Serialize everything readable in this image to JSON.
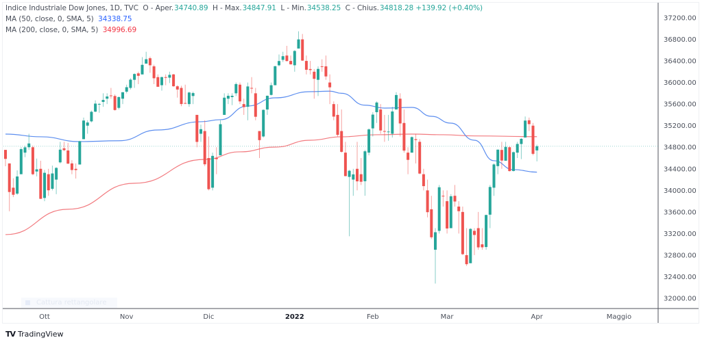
{
  "header": {
    "symbol_line": "Indice Industriale Dow Jones, 1D, TVC",
    "open_label": "O - Aper.",
    "open": "34740.89",
    "high_label": "H - Max.",
    "high": "34847.91",
    "low_label": "L - Min.",
    "low": "34538.25",
    "close_label": "C - Chius.",
    "close": "34818.28",
    "change": "+139.92 (+0.40%)",
    "ma50_label": "MA (50, close, 0, SMA, 5)",
    "ma50_value": "34338.75",
    "ma200_label": "MA (200, close, 0, SMA, 5)",
    "ma200_value": "34996.69"
  },
  "toolbar": {
    "capture_label": "Cattura rettangolare"
  },
  "brand": {
    "name": "TradingView"
  },
  "colors": {
    "up": "#26a69a",
    "down": "#ef5350",
    "ma50": "#5b8def",
    "ma200": "#f27a7f",
    "last_price_line": "#26a69a"
  },
  "chart_data": {
    "type": "candlestick",
    "title": "Indice Industriale Dow Jones, 1D, TVC",
    "ylim": [
      32000,
      37200
    ],
    "y_ticks": [
      "37200.00",
      "36800.00",
      "36400.00",
      "36000.00",
      "35600.00",
      "35200.00",
      "34800.00",
      "34400.00",
      "34000.00",
      "33600.00",
      "33200.00",
      "32800.00",
      "32400.00",
      "32000.00"
    ],
    "x_ticks": [
      {
        "label": "Ott",
        "date": "2021-10-01",
        "bold": false
      },
      {
        "label": "Nov",
        "date": "2021-11-01",
        "bold": false
      },
      {
        "label": "Dic",
        "date": "2021-12-01",
        "bold": false
      },
      {
        "label": "2022",
        "date": "2022-01-03",
        "bold": true
      },
      {
        "label": "Feb",
        "date": "2022-02-01",
        "bold": false
      },
      {
        "label": "Mar",
        "date": "2022-03-01",
        "bold": false
      },
      {
        "label": "Apr",
        "date": "2022-04-01",
        "bold": false
      },
      {
        "label": "Maggio",
        "date": "2022-05-02",
        "bold": false
      }
    ],
    "grid": false,
    "last_price": 34818.28,
    "columns": [
      "date",
      "open",
      "high",
      "low",
      "close"
    ],
    "candles": [
      [
        "2021-09-17",
        34751,
        34751,
        34448,
        34584
      ],
      [
        "2021-09-20",
        34500,
        34500,
        33613,
        33970
      ],
      [
        "2021-09-21",
        34050,
        34225,
        33876,
        33919
      ],
      [
        "2021-09-22",
        33940,
        34371,
        33916,
        34258
      ],
      [
        "2021-09-23",
        34300,
        34800,
        34300,
        34765
      ],
      [
        "2021-09-24",
        34700,
        34827,
        34616,
        34798
      ],
      [
        "2021-09-27",
        34800,
        35050,
        34750,
        34870
      ],
      [
        "2021-09-28",
        34800,
        34830,
        34280,
        34300
      ],
      [
        "2021-09-29",
        34350,
        34590,
        34260,
        34390
      ],
      [
        "2021-09-30",
        34400,
        34550,
        33840,
        33844
      ],
      [
        "2021-10-01",
        33860,
        34380,
        33800,
        34326
      ],
      [
        "2021-10-04",
        34300,
        34400,
        33900,
        34002
      ],
      [
        "2021-10-05",
        34030,
        34460,
        34000,
        34314
      ],
      [
        "2021-10-06",
        34200,
        34430,
        33930,
        34417
      ],
      [
        "2021-10-07",
        34520,
        34900,
        34500,
        34755
      ],
      [
        "2021-10-08",
        34780,
        34900,
        34730,
        34746
      ],
      [
        "2021-10-11",
        34740,
        34880,
        34490,
        34496
      ],
      [
        "2021-10-12",
        34500,
        34560,
        34300,
        34378
      ],
      [
        "2021-10-13",
        34400,
        34500,
        34220,
        34377
      ],
      [
        "2021-10-14",
        34480,
        34920,
        34480,
        34912
      ],
      [
        "2021-10-15",
        34950,
        35350,
        34950,
        35295
      ],
      [
        "2021-10-18",
        35200,
        35300,
        35050,
        35259
      ],
      [
        "2021-10-19",
        35280,
        35480,
        35260,
        35457
      ],
      [
        "2021-10-20",
        35460,
        35670,
        35450,
        35609
      ],
      [
        "2021-10-21",
        35600,
        35620,
        35440,
        35603
      ],
      [
        "2021-10-22",
        35640,
        35800,
        35550,
        35677
      ],
      [
        "2021-10-25",
        35700,
        35800,
        35600,
        35741
      ],
      [
        "2021-10-26",
        35760,
        35900,
        35700,
        35757
      ],
      [
        "2021-10-27",
        35750,
        35780,
        35480,
        35490
      ],
      [
        "2021-10-28",
        35530,
        35740,
        35500,
        35730
      ],
      [
        "2021-10-29",
        35700,
        35820,
        35600,
        35820
      ],
      [
        "2021-11-01",
        35830,
        35960,
        35800,
        35913
      ],
      [
        "2021-11-02",
        35900,
        36080,
        35870,
        36053
      ],
      [
        "2021-11-03",
        36050,
        36170,
        35900,
        36158
      ],
      [
        "2021-11-04",
        36170,
        36200,
        35970,
        36124
      ],
      [
        "2021-11-05",
        36150,
        36470,
        36150,
        36328
      ],
      [
        "2021-11-08",
        36350,
        36570,
        36350,
        36432
      ],
      [
        "2021-11-09",
        36450,
        36480,
        36180,
        36320
      ],
      [
        "2021-11-10",
        36300,
        36330,
        35970,
        36079
      ],
      [
        "2021-11-11",
        36100,
        36150,
        35920,
        35921
      ],
      [
        "2021-11-12",
        35950,
        36110,
        35850,
        36100
      ],
      [
        "2021-11-15",
        36100,
        36150,
        35950,
        36087
      ],
      [
        "2021-11-16",
        36090,
        36200,
        35990,
        36142
      ],
      [
        "2021-11-17",
        36150,
        36160,
        35920,
        35931
      ],
      [
        "2021-11-18",
        35930,
        35950,
        35720,
        35870
      ],
      [
        "2021-11-19",
        35900,
        35940,
        35560,
        35601
      ],
      [
        "2021-11-22",
        35620,
        35960,
        35600,
        35619
      ],
      [
        "2021-11-23",
        35600,
        35830,
        35550,
        35814
      ],
      [
        "2021-11-24",
        35750,
        35830,
        35600,
        35804
      ],
      [
        "2021-11-26",
        35400,
        35400,
        34800,
        34899
      ],
      [
        "2021-11-29",
        35050,
        35220,
        34900,
        35135
      ],
      [
        "2021-11-30",
        35100,
        35300,
        34450,
        34484
      ],
      [
        "2021-12-01",
        34600,
        35000,
        34000,
        34022
      ],
      [
        "2021-12-02",
        34050,
        34700,
        34000,
        34640
      ],
      [
        "2021-12-03",
        34600,
        34800,
        34300,
        34580
      ],
      [
        "2021-12-06",
        34650,
        35300,
        34650,
        35227
      ],
      [
        "2021-12-07",
        35400,
        35800,
        35400,
        35719
      ],
      [
        "2021-12-08",
        35700,
        35800,
        35600,
        35754
      ],
      [
        "2021-12-09",
        35730,
        35800,
        35580,
        35754
      ],
      [
        "2021-12-10",
        35800,
        36000,
        35750,
        35971
      ],
      [
        "2021-12-13",
        35960,
        36000,
        35600,
        35650
      ],
      [
        "2021-12-14",
        35600,
        35700,
        35400,
        35544
      ],
      [
        "2021-12-15",
        35550,
        36000,
        35300,
        35927
      ],
      [
        "2021-12-16",
        35900,
        36100,
        35800,
        35897
      ],
      [
        "2021-12-17",
        35800,
        35900,
        35300,
        35365
      ],
      [
        "2021-12-20",
        35100,
        35100,
        34600,
        34932
      ],
      [
        "2021-12-21",
        35000,
        35500,
        34980,
        35493
      ],
      [
        "2021-12-22",
        35500,
        35760,
        35400,
        35754
      ],
      [
        "2021-12-23",
        35770,
        36000,
        35760,
        35950
      ],
      [
        "2021-12-27",
        35950,
        36310,
        35950,
        36302
      ],
      [
        "2021-12-28",
        36320,
        36520,
        36300,
        36398
      ],
      [
        "2021-12-29",
        36420,
        36570,
        36380,
        36488
      ],
      [
        "2021-12-30",
        36500,
        36680,
        36390,
        36398
      ],
      [
        "2021-12-31",
        36400,
        36500,
        36330,
        36338
      ],
      [
        "2022-01-03",
        36320,
        36600,
        36200,
        36585
      ],
      [
        "2022-01-04",
        36630,
        36950,
        36630,
        36799
      ],
      [
        "2022-01-05",
        36800,
        36900,
        36400,
        36407
      ],
      [
        "2022-01-06",
        36400,
        36500,
        36150,
        36236
      ],
      [
        "2022-01-07",
        36250,
        36400,
        36150,
        36231
      ],
      [
        "2022-01-10",
        36200,
        36250,
        35700,
        36068
      ],
      [
        "2022-01-11",
        36050,
        36300,
        35750,
        36252
      ],
      [
        "2022-01-12",
        36300,
        36430,
        36200,
        36290
      ],
      [
        "2022-01-13",
        36300,
        36500,
        36050,
        36113
      ],
      [
        "2022-01-14",
        36000,
        36150,
        35600,
        35911
      ],
      [
        "2022-01-18",
        35600,
        35650,
        35300,
        35368
      ],
      [
        "2022-01-19",
        35400,
        35600,
        35000,
        35029
      ],
      [
        "2022-01-20",
        35100,
        35500,
        34700,
        34715
      ],
      [
        "2022-01-21",
        34700,
        34900,
        34260,
        34265
      ],
      [
        "2022-01-24",
        34250,
        34380,
        33150,
        34364
      ],
      [
        "2022-01-25",
        34200,
        34400,
        33900,
        34297
      ],
      [
        "2022-01-26",
        34400,
        34900,
        34000,
        34168
      ],
      [
        "2022-01-27",
        34300,
        34600,
        34100,
        34160
      ],
      [
        "2022-01-28",
        34170,
        34750,
        33900,
        34725
      ],
      [
        "2022-01-31",
        34700,
        35150,
        34650,
        35131
      ],
      [
        "2022-02-01",
        35150,
        35450,
        35000,
        35405
      ],
      [
        "2022-02-02",
        35450,
        35650,
        35250,
        35629
      ],
      [
        "2022-02-03",
        35500,
        35600,
        35050,
        35111
      ],
      [
        "2022-02-04",
        35100,
        35400,
        34900,
        35089
      ],
      [
        "2022-02-07",
        35090,
        35400,
        34920,
        35091
      ],
      [
        "2022-02-08",
        35050,
        35550,
        34980,
        35463
      ],
      [
        "2022-02-09",
        35500,
        35820,
        35500,
        35768
      ],
      [
        "2022-02-10",
        35700,
        35800,
        35000,
        35241
      ],
      [
        "2022-02-11",
        35250,
        35500,
        34700,
        34738
      ],
      [
        "2022-02-14",
        34700,
        34800,
        34300,
        34566
      ],
      [
        "2022-02-15",
        34700,
        35000,
        34700,
        34988
      ],
      [
        "2022-02-16",
        34950,
        35050,
        34500,
        34934
      ],
      [
        "2022-02-17",
        34900,
        34950,
        34300,
        34312
      ],
      [
        "2022-02-18",
        34300,
        34400,
        34000,
        34079
      ],
      [
        "2022-02-22",
        34000,
        34200,
        33500,
        33596
      ],
      [
        "2022-02-23",
        33650,
        33900,
        33100,
        33131
      ],
      [
        "2022-02-24",
        32900,
        33300,
        32272,
        33224
      ],
      [
        "2022-02-25",
        33250,
        34100,
        33200,
        34058
      ],
      [
        "2022-02-28",
        33900,
        34000,
        33700,
        33893
      ],
      [
        "2022-03-01",
        33800,
        34000,
        33200,
        33294
      ],
      [
        "2022-03-02",
        33300,
        33930,
        33300,
        33891
      ],
      [
        "2022-03-03",
        33900,
        34100,
        33700,
        33794
      ],
      [
        "2022-03-04",
        33700,
        33800,
        33200,
        33615
      ],
      [
        "2022-03-07",
        33600,
        33700,
        32800,
        32818
      ],
      [
        "2022-03-08",
        32800,
        33300,
        32600,
        32632
      ],
      [
        "2022-03-09",
        32650,
        33300,
        32650,
        33286
      ],
      [
        "2022-03-10",
        33250,
        33300,
        32800,
        33174
      ],
      [
        "2022-03-11",
        33300,
        33600,
        32900,
        32944
      ],
      [
        "2022-03-14",
        33000,
        33300,
        32900,
        32945
      ],
      [
        "2022-03-15",
        32950,
        33550,
        32900,
        33544
      ],
      [
        "2022-03-16",
        33550,
        34100,
        33300,
        34063
      ],
      [
        "2022-03-17",
        34050,
        34500,
        33900,
        34481
      ],
      [
        "2022-03-18",
        34450,
        34760,
        34300,
        34755
      ],
      [
        "2022-03-21",
        34750,
        34900,
        34400,
        34553
      ],
      [
        "2022-03-22",
        34550,
        34900,
        34550,
        34807
      ],
      [
        "2022-03-23",
        34800,
        34820,
        34350,
        34358
      ],
      [
        "2022-03-24",
        34360,
        34720,
        34350,
        34708
      ],
      [
        "2022-03-25",
        34700,
        34900,
        34600,
        34861
      ],
      [
        "2022-03-28",
        34860,
        34970,
        34580,
        34955
      ],
      [
        "2022-03-29",
        34980,
        35370,
        34980,
        35294
      ],
      [
        "2022-03-30",
        35300,
        35350,
        35100,
        35229
      ],
      [
        "2022-03-31",
        35200,
        35250,
        34650,
        34678
      ],
      [
        "2022-04-01",
        34740.89,
        34847.91,
        34538.25,
        34818.28
      ]
    ],
    "ma50": [
      [
        "2021-09-17",
        35044
      ],
      [
        "2021-09-30",
        34994
      ],
      [
        "2021-10-14",
        34905
      ],
      [
        "2021-10-28",
        34920
      ],
      [
        "2021-11-11",
        35120
      ],
      [
        "2021-11-29",
        35273
      ],
      [
        "2021-12-06",
        35311
      ],
      [
        "2021-12-15",
        35565
      ],
      [
        "2021-12-27",
        35716
      ],
      [
        "2022-01-07",
        35830
      ],
      [
        "2022-01-14",
        35840
      ],
      [
        "2022-01-20",
        35800
      ],
      [
        "2022-01-28",
        35580
      ],
      [
        "2022-02-04",
        35526
      ],
      [
        "2022-02-15",
        35539
      ],
      [
        "2022-02-23",
        35374
      ],
      [
        "2022-03-02",
        35247
      ],
      [
        "2022-03-10",
        34930
      ],
      [
        "2022-03-17",
        34550
      ],
      [
        "2022-03-24",
        34385
      ],
      [
        "2022-04-01",
        34338.75
      ]
    ],
    "ma200": [
      [
        "2021-09-17",
        33180
      ],
      [
        "2021-10-11",
        33650
      ],
      [
        "2021-11-03",
        34132
      ],
      [
        "2021-11-30",
        34575
      ],
      [
        "2021-12-13",
        34715
      ],
      [
        "2021-12-27",
        34803
      ],
      [
        "2022-01-07",
        34930
      ],
      [
        "2022-01-20",
        34994
      ],
      [
        "2022-02-02",
        35032
      ],
      [
        "2022-02-15",
        35044
      ],
      [
        "2022-02-28",
        35032
      ],
      [
        "2022-03-10",
        35010
      ],
      [
        "2022-04-01",
        34996.69
      ]
    ]
  }
}
